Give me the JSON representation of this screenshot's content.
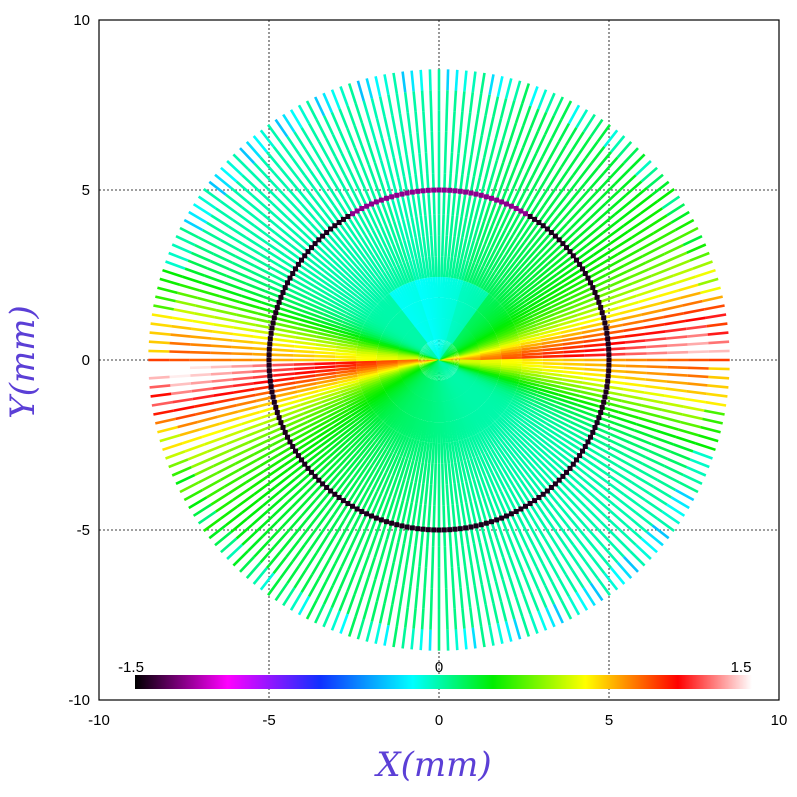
{
  "chart_data": {
    "type": "scatter",
    "xlabel": "X(mm)",
    "ylabel": "Y(mm)",
    "xlim": [
      -10,
      10
    ],
    "ylim": [
      -10,
      10
    ],
    "x_ticks": [
      "-10",
      "-5",
      "0",
      "5",
      "10"
    ],
    "y_ticks": [
      "10",
      "5",
      "0",
      "-5",
      "-10"
    ],
    "grid": true,
    "ray_count": 200,
    "outer_radius": 8.55,
    "inner_circle_radius": 5,
    "colorbar": {
      "range": [
        -1.5,
        1.5
      ],
      "labels": [
        "-1.5",
        "0",
        "1.5"
      ],
      "colors": [
        "#000000",
        "#ff00ff",
        "#0000ff",
        "#00ffff",
        "#00ff00",
        "#ffff00",
        "#ff0000",
        "#ffffff"
      ]
    }
  }
}
